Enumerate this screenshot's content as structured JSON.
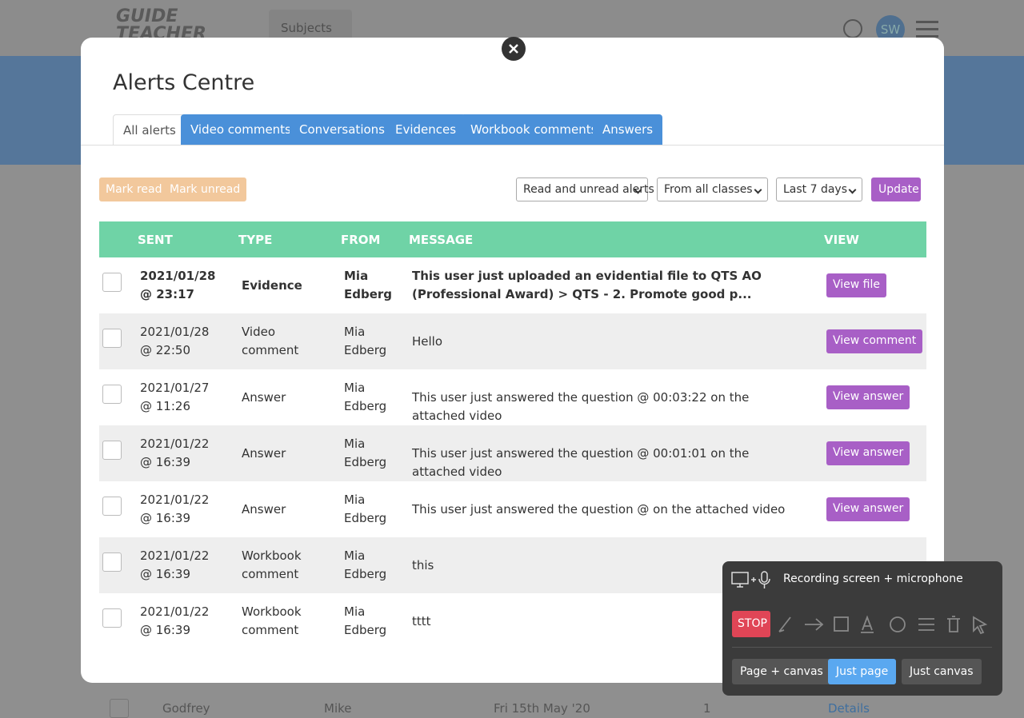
{
  "header": {
    "logo": "GUIDE TEACHER DEVELOPMENT",
    "subjects": "Subjects",
    "avatar": "SW"
  },
  "background_row": [
    "Godfrey",
    "Mike",
    "Fri 15th May '20",
    "1",
    "Details"
  ],
  "modal": {
    "title": "Alerts Centre",
    "tabs": [
      "All alerts",
      "Video comments",
      "Conversations",
      "Evidences",
      "Workbook comments",
      "Answers"
    ],
    "actions": [
      "Mark read",
      "Mark unread"
    ],
    "filters": [
      "Read and unread alerts",
      "From all classes",
      "Last 7 days"
    ],
    "update": "Update",
    "table": {
      "headers": [
        "SENT",
        "TYPE",
        "FROM",
        "MESSAGE",
        "VIEW"
      ],
      "rows": [
        {
          "sent": "2021/01/28 @ 23:17",
          "type": "Evidence",
          "from": "Mia Edberg",
          "message": "This user just uploaded an evidential file to QTS AO (Professional Award) > QTS - 2. Promote good p...",
          "view": "View file"
        },
        {
          "sent": "2021/01/28 @ 22:50",
          "type": "Video comment",
          "from": "Mia Edberg",
          "message": "Hello",
          "view": "View comment"
        },
        {
          "sent": "2021/01/27 @ 11:26",
          "type": "Answer",
          "from": "Mia Edberg",
          "message": "This user just answered the question @ 00:03:22 on the attached video",
          "view": "View answer"
        },
        {
          "sent": "2021/01/22 @ 16:39",
          "type": "Answer",
          "from": "Mia Edberg",
          "message": "This user just answered the question @ 00:01:01 on the attached video",
          "view": "View answer"
        },
        {
          "sent": "2021/01/22 @ 16:39",
          "type": "Answer",
          "from": "Mia Edberg",
          "message": "This user just answered the question @ on the attached video",
          "view": "View answer"
        },
        {
          "sent": "2021/01/22 @ 16:39",
          "type": "Workbook comment",
          "from": "Mia Edberg",
          "message": "this"
        },
        {
          "sent": "2021/01/22 @ 16:39",
          "type": "Workbook comment",
          "from": "Mia Edberg",
          "message": "tttt"
        }
      ]
    }
  },
  "recorder": {
    "status": "Recording screen + microphone",
    "stop": "STOP",
    "modes": [
      "Page + canvas",
      "Just page",
      "Just canvas"
    ]
  }
}
